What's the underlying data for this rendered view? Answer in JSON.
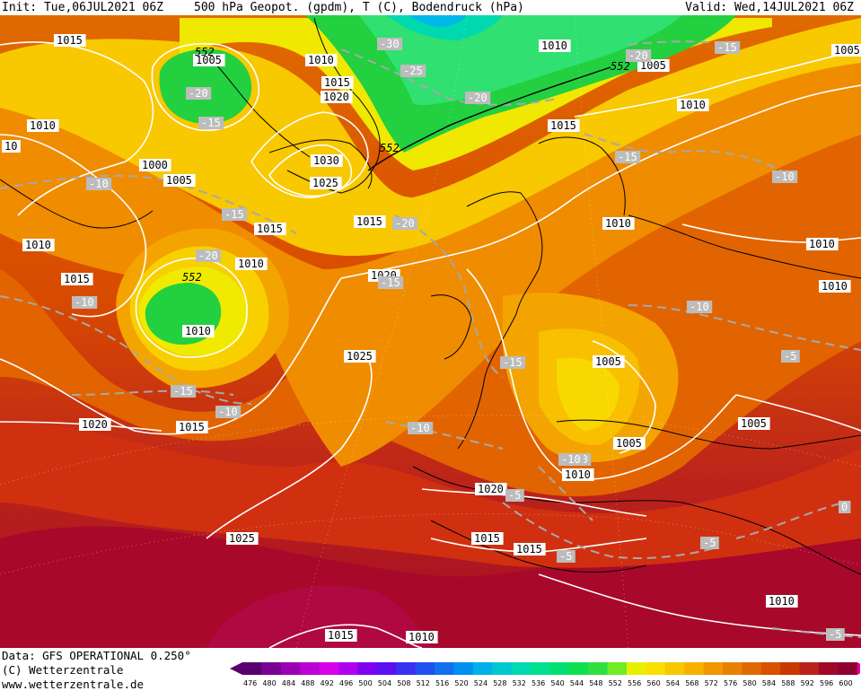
{
  "header": {
    "init": "Init: Tue,06JUL2021 06Z",
    "description": "500 hPa Geopot. (gpdm), T (C), Bodendruck (hPa)",
    "valid": "Valid: Wed,14JUL2021 06Z"
  },
  "footer": {
    "data_source": "Data: GFS OPERATIONAL 0.250°",
    "copyright": "(C) Wetterzentrale",
    "website": "www.wetterzentrale.de"
  },
  "colorbar": {
    "ticks": [
      "476",
      "480",
      "484",
      "488",
      "492",
      "496",
      "500",
      "504",
      "508",
      "512",
      "516",
      "520",
      "524",
      "528",
      "532",
      "536",
      "540",
      "544",
      "548",
      "552",
      "556",
      "560",
      "564",
      "568",
      "572",
      "576",
      "580",
      "584",
      "588",
      "592",
      "596",
      "600"
    ],
    "colors": [
      "#5a006e",
      "#7a0094",
      "#9a00b4",
      "#bb00d4",
      "#d800e8",
      "#b000f0",
      "#8000f0",
      "#5a10f0",
      "#3a30f0",
      "#2050f0",
      "#1070f0",
      "#0090f0",
      "#00b0e8",
      "#00c8d0",
      "#00d8b0",
      "#00e090",
      "#00e070",
      "#10e050",
      "#30e040",
      "#70ec20",
      "#e8f000",
      "#f8e000",
      "#f8c800",
      "#f8b000",
      "#f09800",
      "#e88000",
      "#e06800",
      "#d85000",
      "#c83800",
      "#b82018",
      "#a00828",
      "#900030"
    ]
  },
  "map": {
    "pressure_labels": [
      {
        "text": "1015"
      },
      {
        "text": "1005"
      },
      {
        "text": "1010"
      },
      {
        "text": "1010"
      },
      {
        "text": "1015"
      },
      {
        "text": "1020"
      },
      {
        "text": "1010"
      },
      {
        "text": "1005"
      },
      {
        "text": "1005"
      },
      {
        "text": "1010"
      },
      {
        "text": "1015"
      },
      {
        "text": "1000"
      },
      {
        "text": "1005"
      },
      {
        "text": "1030"
      },
      {
        "text": "1025"
      },
      {
        "text": "1015"
      },
      {
        "text": "1015"
      },
      {
        "text": "1010"
      },
      {
        "text": "1010"
      },
      {
        "text": "1010"
      },
      {
        "text": "1015"
      },
      {
        "text": "1010"
      },
      {
        "text": "1020"
      },
      {
        "text": "1010"
      },
      {
        "text": "1010"
      },
      {
        "text": "1025"
      },
      {
        "text": "1005"
      },
      {
        "text": "1020"
      },
      {
        "text": "1015"
      },
      {
        "text": "1005"
      },
      {
        "text": "1005"
      },
      {
        "text": "1010"
      },
      {
        "text": "1020"
      },
      {
        "text": "1025"
      },
      {
        "text": "1015"
      },
      {
        "text": "1015"
      },
      {
        "text": "1010"
      },
      {
        "text": "1015"
      },
      {
        "text": "1010"
      },
      {
        "text": "10"
      }
    ],
    "temp_labels": [
      {
        "text": "-30"
      },
      {
        "text": "-25"
      },
      {
        "text": "-20"
      },
      {
        "text": "-20"
      },
      {
        "text": "-20"
      },
      {
        "text": "-15"
      },
      {
        "text": "-15"
      },
      {
        "text": "-20"
      },
      {
        "text": "-10"
      },
      {
        "text": "-15"
      },
      {
        "text": "-15"
      },
      {
        "text": "-10"
      },
      {
        "text": "-10"
      },
      {
        "text": "-20"
      },
      {
        "text": "-15"
      },
      {
        "text": "-10"
      },
      {
        "text": "-15"
      },
      {
        "text": "-10"
      },
      {
        "text": "-10"
      },
      {
        "text": "-10"
      },
      {
        "text": "-15"
      },
      {
        "text": "-10"
      },
      {
        "text": "-5"
      },
      {
        "text": "-5"
      },
      {
        "text": "-5"
      },
      {
        "text": "-5"
      },
      {
        "text": "-5"
      },
      {
        "text": "0"
      },
      {
        "text": "-10"
      }
    ],
    "geopotential_labels": [
      {
        "text": "552"
      },
      {
        "text": "552"
      },
      {
        "text": "552"
      },
      {
        "text": "552"
      }
    ]
  }
}
